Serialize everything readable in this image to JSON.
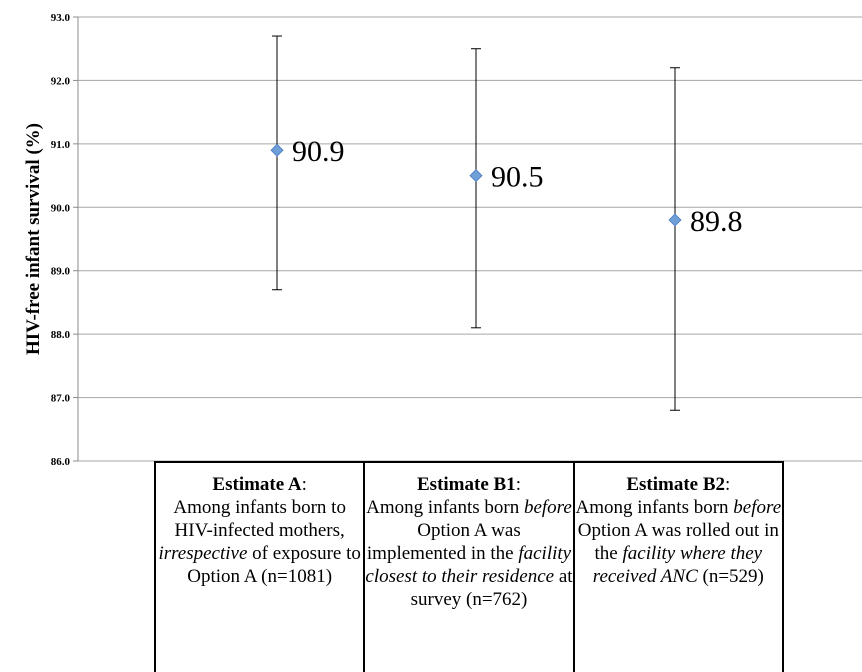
{
  "chart_data": {
    "type": "scatter",
    "ylabel": "HIV-free infant survival (%)",
    "ylim": [
      86.0,
      93.0
    ],
    "yticks": [
      "86.0",
      "87.0",
      "88.0",
      "89.0",
      "90.0",
      "91.0",
      "92.0",
      "93.0"
    ],
    "grid": true,
    "points": [
      {
        "category": "Estimate A",
        "value": 90.9,
        "label": "90.9",
        "ci_low": 88.7,
        "ci_high": 92.7
      },
      {
        "category": "Estimate B1",
        "value": 90.5,
        "label": "90.5",
        "ci_low": 88.1,
        "ci_high": 92.5
      },
      {
        "category": "Estimate B2",
        "value": 89.8,
        "label": "89.8",
        "ci_low": 86.8,
        "ci_high": 92.2
      }
    ],
    "colors": {
      "marker": "#6f9fd8",
      "marker_edge": "#4a7cc0",
      "grid": "#a6a6a6"
    }
  },
  "table": {
    "cells": [
      {
        "title": "Estimate A",
        "parts": [
          {
            "t": "Among infants born to HIV-infected mothers, ",
            "s": "n"
          },
          {
            "t": "irrespective",
            "s": "i"
          },
          {
            "t": " of exposure to Option A (n=1081)",
            "s": "n"
          }
        ]
      },
      {
        "title": "Estimate B1",
        "parts": [
          {
            "t": "Among infants born ",
            "s": "n"
          },
          {
            "t": "before",
            "s": "i"
          },
          {
            "t": " Option A was implemented in the ",
            "s": "n"
          },
          {
            "t": "facility closest to their residence",
            "s": "i"
          },
          {
            "t": " at survey (n=762)",
            "s": "n"
          }
        ]
      },
      {
        "title": "Estimate B2",
        "parts": [
          {
            "t": "Among infants born ",
            "s": "n"
          },
          {
            "t": "before",
            "s": "i"
          },
          {
            "t": " Option A was rolled out in the ",
            "s": "n"
          },
          {
            "t": "facility where they received ANC",
            "s": "i"
          },
          {
            "t": " (n=529)",
            "s": "n"
          }
        ]
      }
    ]
  }
}
